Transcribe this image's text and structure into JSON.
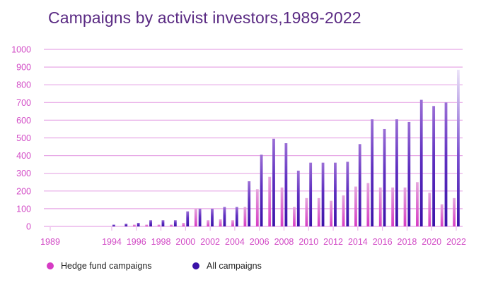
{
  "chart_data": {
    "type": "bar",
    "title": "Campaigns by activist investors,1989-2022",
    "ylim": [
      0,
      1000
    ],
    "yticks": [
      0,
      100,
      200,
      300,
      400,
      500,
      600,
      700,
      800,
      900,
      1000
    ],
    "x_tick_labels": [
      "1989",
      "1994",
      "1996",
      "1998",
      "2000",
      "2002",
      "2004",
      "2006",
      "2008",
      "2010",
      "2012",
      "2014",
      "2016",
      "2018",
      "2020",
      "2022"
    ],
    "x": [
      1994,
      1995,
      1996,
      1997,
      1998,
      1999,
      2000,
      2001,
      2002,
      2003,
      2004,
      2005,
      2006,
      2007,
      2008,
      2009,
      2010,
      2011,
      2012,
      2013,
      2014,
      2015,
      2016,
      2017,
      2018,
      2019,
      2020,
      2021,
      2022
    ],
    "grid": true,
    "legend_position": "bottom-left",
    "series": [
      {
        "name": "Hedge fund campaigns",
        "color": "#d63cc4",
        "values": [
          0,
          0,
          10,
          10,
          10,
          10,
          20,
          100,
          35,
          40,
          35,
          110,
          210,
          280,
          220,
          110,
          160,
          160,
          145,
          175,
          225,
          245,
          220,
          220,
          220,
          250,
          190,
          125,
          160
        ]
      },
      {
        "name": "All campaigns",
        "color": "#3a12a8",
        "values": [
          10,
          15,
          20,
          35,
          35,
          35,
          85,
          100,
          100,
          110,
          110,
          255,
          405,
          495,
          470,
          315,
          360,
          360,
          360,
          365,
          465,
          605,
          550,
          605,
          590,
          715,
          680,
          700,
          885
        ]
      }
    ]
  }
}
